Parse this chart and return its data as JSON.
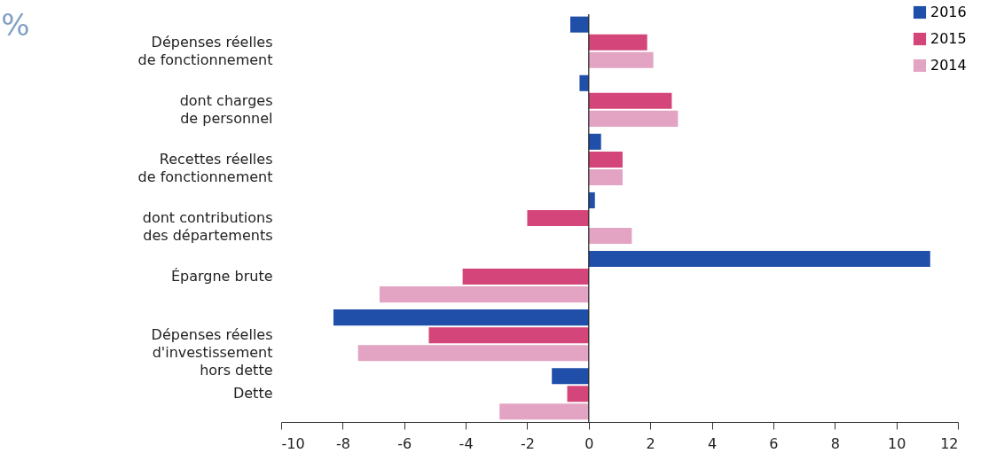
{
  "chart_data": {
    "type": "bar",
    "orientation": "horizontal",
    "ylabel": "%",
    "categories": [
      "Dépenses réelles\nde fonctionnement",
      "dont charges\nde personnel",
      "Recettes réelles\nde fonctionnement",
      "dont contributions\ndes départements",
      "Épargne brute",
      "Dépenses réelles\nd'investissement\nhors dette",
      "Dette"
    ],
    "series": [
      {
        "name": "2016",
        "color": "#1f4fa8",
        "values": [
          -0.6,
          -0.3,
          0.4,
          0.2,
          11.1,
          -8.3,
          -1.2
        ]
      },
      {
        "name": "2015",
        "color": "#d4467a",
        "values": [
          1.9,
          2.7,
          1.1,
          -2.0,
          -4.1,
          -5.2,
          -0.7
        ]
      },
      {
        "name": "2014",
        "color": "#e3a3c3",
        "values": [
          2.1,
          2.9,
          1.1,
          1.4,
          -6.8,
          -7.5,
          -2.9
        ]
      }
    ],
    "xlim": [
      -10,
      12
    ],
    "xticks": [
      -10,
      -8,
      -6,
      -4,
      -2,
      0,
      2,
      4,
      6,
      8,
      10,
      12
    ],
    "ref_lines": [
      {
        "axis": "x",
        "value": 0
      }
    ],
    "grid": false,
    "legend": "top right"
  }
}
